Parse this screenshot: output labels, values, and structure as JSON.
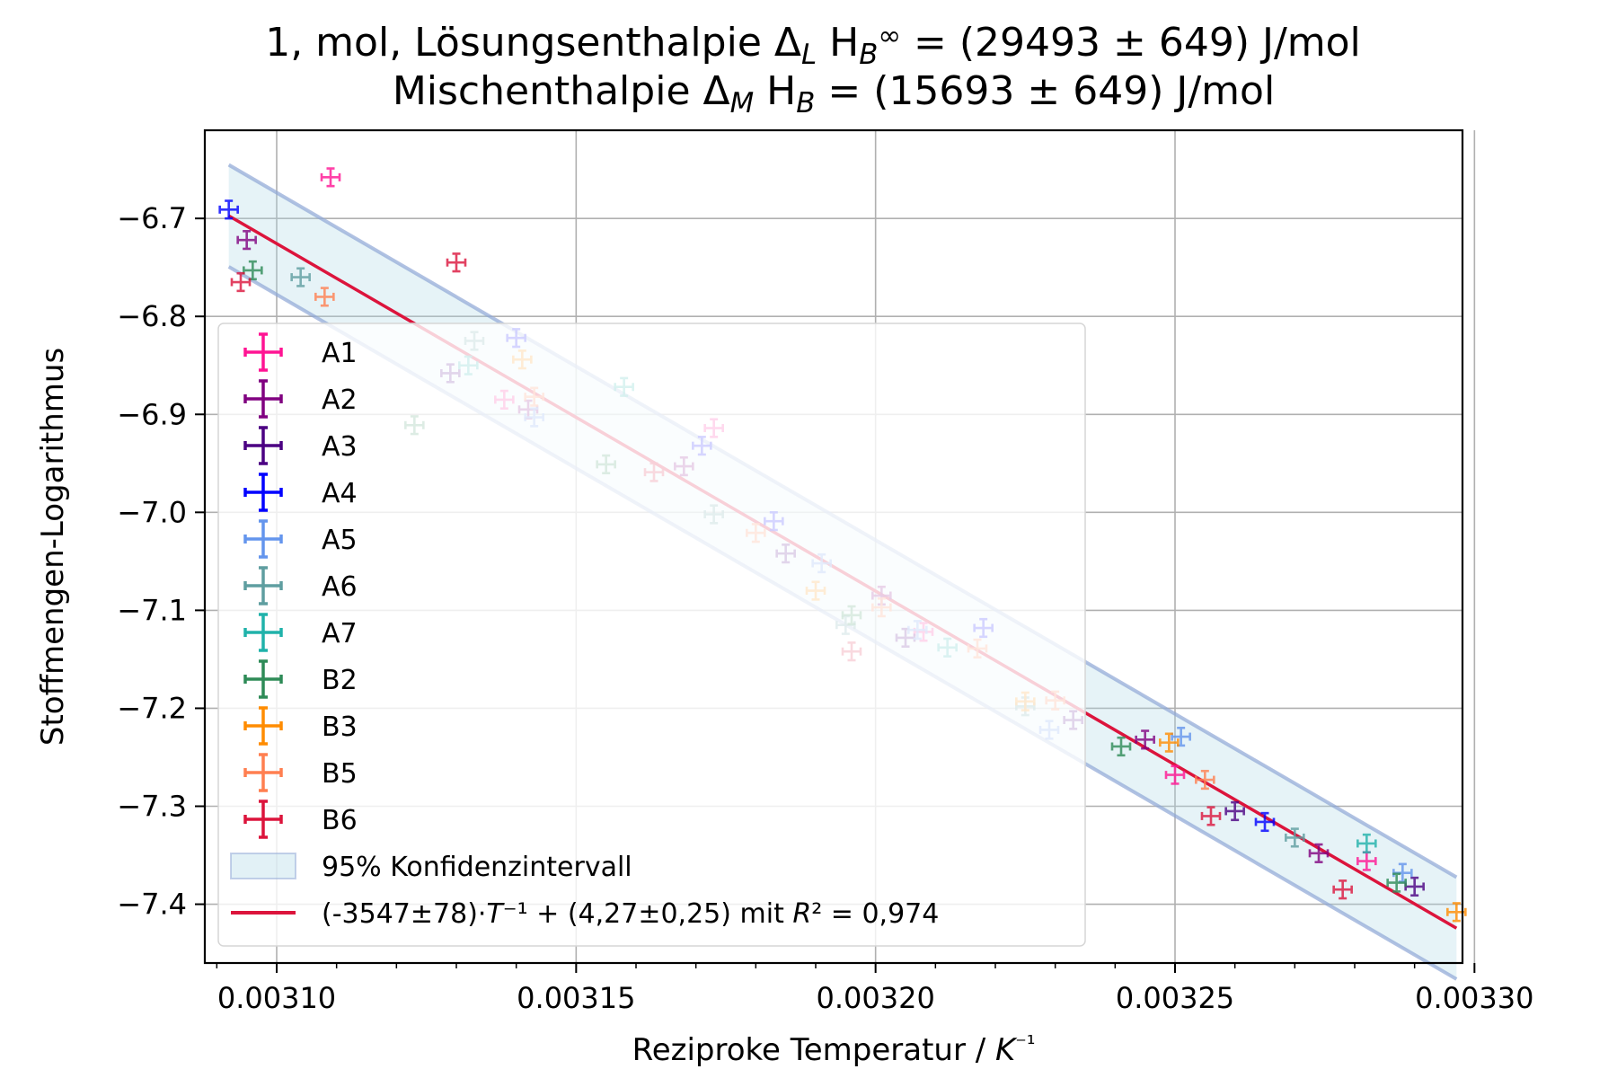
{
  "chart_data": {
    "type": "scatter",
    "title_lines": [
      "1, mol, Lösungsenthalpie Δ_L H_B^∞ = (29493 ± 649) J/mol",
      "Mischenthalpie Δ_M H_B = (15693 ± 649) J/mol"
    ],
    "xlabel": "Reziproke Temperatur / K⁻¹",
    "ylabel": "Stoffmengen-Logarithmus",
    "xlim": [
      0.003088,
      0.003298
    ],
    "ylim": [
      -7.46,
      -6.61
    ],
    "x_ticks": [
      "0.00310",
      "0.00315",
      "0.00320",
      "0.00325",
      "0.00330"
    ],
    "x_tick_values": [
      0.0031,
      0.00315,
      0.0032,
      0.00325,
      0.0033
    ],
    "y_ticks": [
      "−6.7",
      "−6.8",
      "−6.9",
      "−7.0",
      "−7.1",
      "−7.2",
      "−7.3",
      "−7.4"
    ],
    "y_tick_values": [
      -6.7,
      -6.8,
      -6.9,
      -7.0,
      -7.1,
      -7.2,
      -7.3,
      -7.4
    ],
    "grid": true,
    "legend_position": "lower-left",
    "x_err": 1.5e-06,
    "y_err": 0.009,
    "series": [
      {
        "name": "A1",
        "color": "#ff1493",
        "points": [
          [
            0.003109,
            -6.658
          ],
          [
            0.003138,
            -6.885
          ],
          [
            0.003173,
            -6.914
          ],
          [
            0.003208,
            -7.122
          ],
          [
            0.00325,
            -7.268
          ],
          [
            0.003282,
            -7.356
          ]
        ]
      },
      {
        "name": "A2",
        "color": "#800080",
        "points": [
          [
            0.003095,
            -6.722
          ],
          [
            0.003142,
            -6.895
          ],
          [
            0.003168,
            -6.953
          ],
          [
            0.003201,
            -7.085
          ],
          [
            0.003245,
            -7.232
          ],
          [
            0.003274,
            -7.348
          ]
        ]
      },
      {
        "name": "A3",
        "color": "#4b0082",
        "points": [
          [
            0.003129,
            -6.858
          ],
          [
            0.003185,
            -7.042
          ],
          [
            0.003205,
            -7.128
          ],
          [
            0.003233,
            -7.212
          ],
          [
            0.00326,
            -7.305
          ],
          [
            0.00329,
            -7.382
          ]
        ]
      },
      {
        "name": "A4",
        "color": "#0000ff",
        "points": [
          [
            0.003092,
            -6.691
          ],
          [
            0.00314,
            -6.822
          ],
          [
            0.003171,
            -6.932
          ],
          [
            0.003183,
            -7.009
          ],
          [
            0.003218,
            -7.118
          ],
          [
            0.003265,
            -7.316
          ]
        ]
      },
      {
        "name": "A5",
        "color": "#6495ed",
        "points": [
          [
            0.003143,
            -6.903
          ],
          [
            0.003191,
            -7.052
          ],
          [
            0.003207,
            -7.12
          ],
          [
            0.003229,
            -7.222
          ],
          [
            0.003251,
            -7.229
          ],
          [
            0.003288,
            -7.368
          ]
        ]
      },
      {
        "name": "A6",
        "color": "#5f9ea0",
        "points": [
          [
            0.003104,
            -6.76
          ],
          [
            0.003133,
            -6.825
          ],
          [
            0.003173,
            -7.002
          ],
          [
            0.003195,
            -7.115
          ],
          [
            0.003225,
            -7.198
          ],
          [
            0.00327,
            -7.332
          ]
        ]
      },
      {
        "name": "A7",
        "color": "#20b2aa",
        "points": [
          [
            0.003132,
            -6.85
          ],
          [
            0.003158,
            -6.872
          ],
          [
            0.003212,
            -7.138
          ],
          [
            0.003282,
            -7.338
          ]
        ]
      },
      {
        "name": "B2",
        "color": "#2e8b57",
        "points": [
          [
            0.003096,
            -6.753
          ],
          [
            0.003123,
            -6.911
          ],
          [
            0.003155,
            -6.951
          ],
          [
            0.003196,
            -7.105
          ],
          [
            0.003241,
            -7.239
          ],
          [
            0.003287,
            -7.378
          ]
        ]
      },
      {
        "name": "B3",
        "color": "#ff8c00",
        "points": [
          [
            0.003141,
            -6.844
          ],
          [
            0.00319,
            -7.08
          ],
          [
            0.003225,
            -7.193
          ],
          [
            0.003249,
            -7.235
          ],
          [
            0.003297,
            -7.408
          ]
        ]
      },
      {
        "name": "B5",
        "color": "#ff7f50",
        "points": [
          [
            0.003108,
            -6.78
          ],
          [
            0.003143,
            -6.882
          ],
          [
            0.00318,
            -7.021
          ],
          [
            0.003201,
            -7.097
          ],
          [
            0.003217,
            -7.139
          ],
          [
            0.00323,
            -7.192
          ],
          [
            0.003255,
            -7.273
          ]
        ]
      },
      {
        "name": "B6",
        "color": "#dc143c",
        "points": [
          [
            0.003094,
            -6.765
          ],
          [
            0.00313,
            -6.745
          ],
          [
            0.003163,
            -6.959
          ],
          [
            0.003196,
            -7.142
          ],
          [
            0.003256,
            -7.31
          ],
          [
            0.003278,
            -7.385
          ]
        ]
      }
    ],
    "fit": {
      "label": "(-3547±78)·T⁻¹ + (4,27±0,25) mit R² = 0,974",
      "color": "#dc143c",
      "slope": -3547,
      "intercept": 4.27,
      "x_range": [
        0.003092,
        0.003297
      ]
    },
    "confidence_band": {
      "label": "95% Konfidenzintervall",
      "half_width": 0.052
    }
  }
}
